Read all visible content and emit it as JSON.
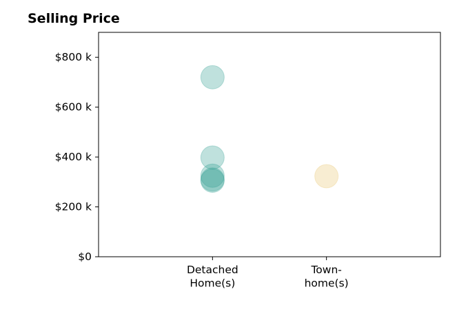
{
  "chart_data": {
    "type": "scatter",
    "title": "Selling Price",
    "categories": [
      "Detached\nHome(s)",
      "Town-\nhome(s)"
    ],
    "yticks": [
      0,
      200000,
      400000,
      600000,
      800000
    ],
    "ytick_labels": [
      "$0",
      "$200 k",
      "$400 k",
      "$600 k",
      "$800 k"
    ],
    "ylim": [
      0,
      900000
    ],
    "grid": false,
    "series": [
      {
        "color": "#2a9d8f",
        "points": [
          {
            "x": "Detached\nHome(s)",
            "y": 720000
          },
          {
            "x": "Detached\nHome(s)",
            "y": 398000
          },
          {
            "x": "Detached\nHome(s)",
            "y": 325000
          },
          {
            "x": "Detached\nHome(s)",
            "y": 310000
          },
          {
            "x": "Detached\nHome(s)",
            "y": 305000
          }
        ]
      },
      {
        "color": "#e9c46a",
        "points": [
          {
            "x": "Town-\nhome(s)",
            "y": 323000
          }
        ]
      }
    ]
  }
}
